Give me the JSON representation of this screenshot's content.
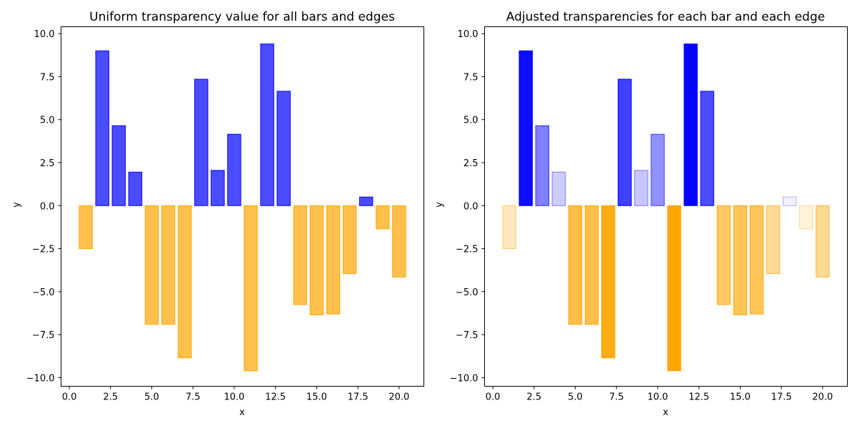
{
  "chart_data": [
    {
      "type": "bar",
      "title": "Uniform transparency value for all bars and edges",
      "xlabel": "x",
      "ylabel": "y",
      "xlim": [
        -0.5,
        21.5
      ],
      "ylim": [
        -10.5,
        10.4
      ],
      "xticks": [
        0.0,
        2.5,
        5.0,
        7.5,
        10.0,
        12.5,
        15.0,
        17.5,
        20.0
      ],
      "xtick_labels": [
        "0.0",
        "2.5",
        "5.0",
        "7.5",
        "10.0",
        "12.5",
        "15.0",
        "17.5",
        "20.0"
      ],
      "yticks": [
        10.0,
        7.5,
        5.0,
        2.5,
        0.0,
        -2.5,
        -5.0,
        -7.5,
        -10.0
      ],
      "ytick_labels": [
        "10.0",
        "7.5",
        "5.0",
        "2.5",
        "0.0",
        "−2.5",
        "−5.0",
        "−7.5",
        "−10.0"
      ],
      "grid": false,
      "x": [
        1,
        2,
        3,
        4,
        5,
        6,
        7,
        8,
        9,
        10,
        11,
        12,
        13,
        14,
        15,
        16,
        17,
        18,
        19,
        20
      ],
      "values": [
        -2.5,
        9.0,
        4.65,
        1.95,
        -6.9,
        -6.9,
        -8.85,
        7.35,
        2.05,
        4.15,
        -9.6,
        9.4,
        6.65,
        -5.75,
        -6.35,
        -6.3,
        -3.95,
        0.5,
        -1.35,
        -4.15
      ],
      "bar_alpha": [
        0.7,
        0.7,
        0.7,
        0.7,
        0.7,
        0.7,
        0.7,
        0.7,
        0.7,
        0.7,
        0.7,
        0.7,
        0.7,
        0.7,
        0.7,
        0.7,
        0.7,
        0.7,
        0.7,
        0.7
      ],
      "positive_color": "#0000ff",
      "negative_color": "#ffa500"
    },
    {
      "type": "bar",
      "title": "Adjusted transparencies for each bar and each edge",
      "xlabel": "x",
      "ylabel": "y",
      "xlim": [
        -0.5,
        21.5
      ],
      "ylim": [
        -10.5,
        10.4
      ],
      "xticks": [
        0.0,
        2.5,
        5.0,
        7.5,
        10.0,
        12.5,
        15.0,
        17.5,
        20.0
      ],
      "xtick_labels": [
        "0.0",
        "2.5",
        "5.0",
        "7.5",
        "10.0",
        "12.5",
        "15.0",
        "17.5",
        "20.0"
      ],
      "yticks": [
        10.0,
        7.5,
        5.0,
        2.5,
        0.0,
        -2.5,
        -5.0,
        -7.5,
        -10.0
      ],
      "ytick_labels": [
        "10.0",
        "7.5",
        "5.0",
        "2.5",
        "0.0",
        "−2.5",
        "−5.0",
        "−7.5",
        "−10.0"
      ],
      "grid": false,
      "x": [
        1,
        2,
        3,
        4,
        5,
        6,
        7,
        8,
        9,
        10,
        11,
        12,
        13,
        14,
        15,
        16,
        17,
        18,
        19,
        20
      ],
      "values": [
        -2.5,
        9.0,
        4.65,
        1.95,
        -6.9,
        -6.9,
        -8.85,
        7.35,
        2.05,
        4.15,
        -9.6,
        9.4,
        6.65,
        -5.75,
        -6.35,
        -6.3,
        -3.95,
        0.5,
        -1.35,
        -4.15
      ],
      "bar_alpha": [
        0.25,
        0.95,
        0.5,
        0.2,
        0.72,
        0.72,
        0.92,
        0.75,
        0.22,
        0.43,
        1.0,
        0.98,
        0.7,
        0.6,
        0.66,
        0.66,
        0.41,
        0.05,
        0.14,
        0.43
      ],
      "positive_color": "#0000ff",
      "negative_color": "#ffa500"
    }
  ]
}
